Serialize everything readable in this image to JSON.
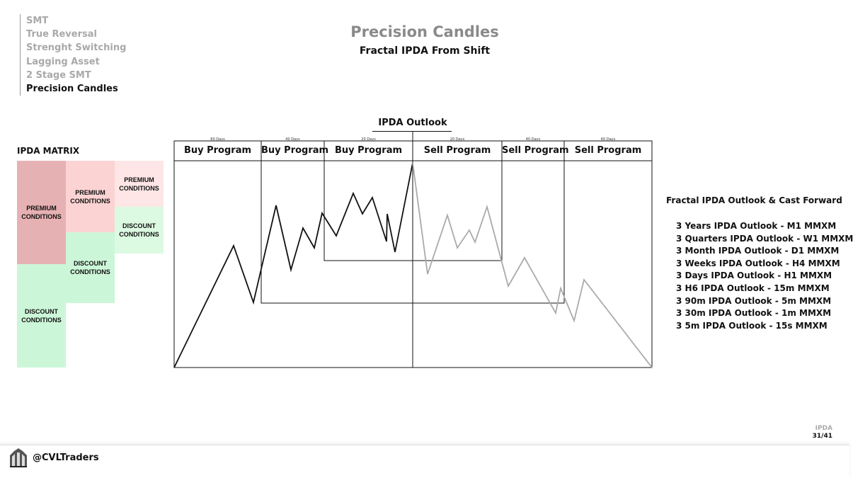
{
  "nav": {
    "items": [
      "SMT",
      "True Reversal",
      "Strenght Switching",
      "Lagging Asset",
      "2 Stage SMT",
      "Precision Candles"
    ],
    "active_index": 5
  },
  "header": {
    "title": "Precision Candles",
    "subtitle": "Fractal IPDA From Shift"
  },
  "matrix": {
    "title": "IPDA MATRIX",
    "premium_label": "PREMIUM CONDITIONS",
    "discount_label": "DISCOUNT CONDITIONS",
    "colors": {
      "premium_dark": "#e6b1b3",
      "premium_mid": "#fcd3d3",
      "premium_light": "#fde6e5",
      "discount": "#ccf6d8",
      "discount_light": "#dcfae2"
    }
  },
  "outlook": {
    "title": "IPDA Outlook",
    "programs": [
      {
        "label": "Buy Program",
        "days": "60 Days"
      },
      {
        "label": "Buy Program",
        "days": "40 Days"
      },
      {
        "label": "Buy Program",
        "days": "20 Days"
      },
      {
        "label": "Sell Program",
        "days": "20 Days"
      },
      {
        "label": "Sell Program",
        "days": "40 Days"
      },
      {
        "label": "Sell Program",
        "days": "60 Days"
      }
    ],
    "line_colors": {
      "buy": "#111111",
      "sell": "#aaaaaa"
    }
  },
  "fractal": {
    "title": "Fractal IPDA Outlook & Cast Forward",
    "items": [
      "3 Years IPDA Outlook - M1 MMXM",
      "3 Quarters IPDA Outlook - W1 MMXM",
      "3 Month IPDA Outlook - D1 MMXM",
      "3 Weeks IPDA Outlook - H4 MMXM",
      "3 Days IPDA Outlook - H1 MMXM",
      "3 H6  IPDA Outlook - 15m MMXM",
      "3 90m  IPDA Outlook - 5m MMXM",
      "3 30m IPDA Outlook - 1m MMXM",
      "3 5m IPDA Outlook - 15s MMXM"
    ]
  },
  "page": {
    "label": "IPDA",
    "count": "31/41"
  },
  "footer": {
    "handle": "@CVLTraders",
    "logo_icon": "building-icon"
  }
}
